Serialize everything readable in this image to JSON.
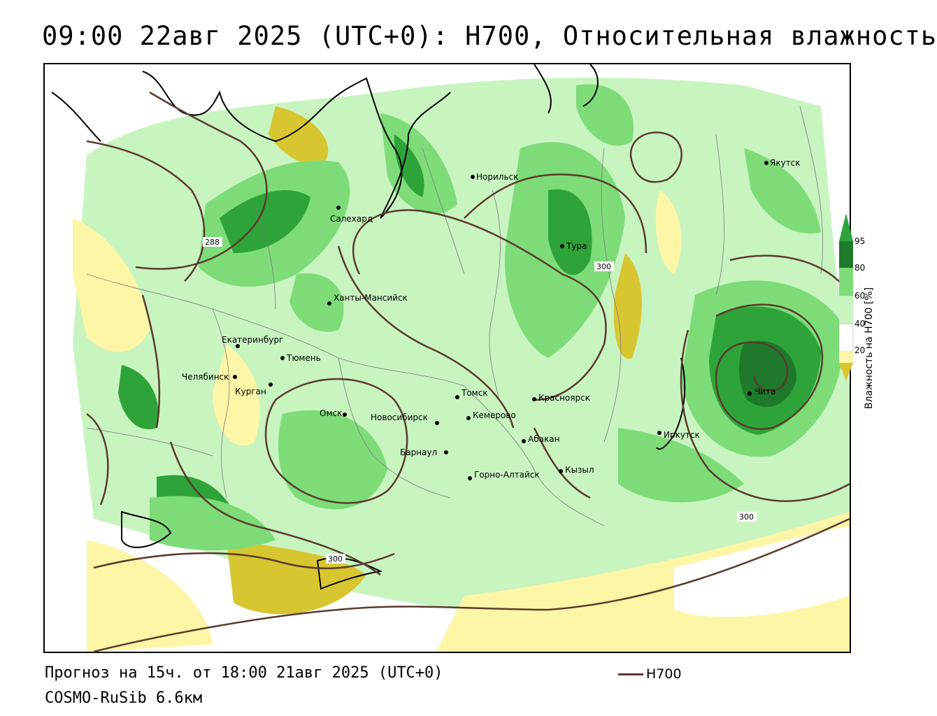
{
  "title": "09:00 22авг 2025 (UTC+0): H700, Относительная влажность",
  "forecast_line": "Прогноз на 15ч. от 18:00 21авг 2025 (UTC+0)",
  "model_line": "COSMO-RuSib 6.6км",
  "contour_legend": {
    "label": "H700",
    "color": "#5a3a2e"
  },
  "colorbar": {
    "title": "Влажность на H700 [%]",
    "ticks": [
      "95",
      "80",
      "60",
      "40",
      "20"
    ],
    "colors": {
      "very_dry": "#d8c630",
      "dry": "#fdf6a6",
      "neutral": "#ffffff",
      "moist": "#c8f4c0",
      "humid": "#7ddc78",
      "wet": "#2ea33a",
      "saturated": "#1e7a2a"
    }
  },
  "cities": [
    {
      "name": "Норильск"
    },
    {
      "name": "Якутск"
    },
    {
      "name": "Салехард"
    },
    {
      "name": "Тура"
    },
    {
      "name": "Ханты-Мансийск"
    },
    {
      "name": "Екатеринбург"
    },
    {
      "name": "Тюмень"
    },
    {
      "name": "Челябинск"
    },
    {
      "name": "Курган"
    },
    {
      "name": "Омск"
    },
    {
      "name": "Новосибирск"
    },
    {
      "name": "Томск"
    },
    {
      "name": "Кемерово"
    },
    {
      "name": "Красноярск"
    },
    {
      "name": "Абакан"
    },
    {
      "name": "Барнаул"
    },
    {
      "name": "Горно-Алтайск"
    },
    {
      "name": "Кызыл"
    },
    {
      "name": "Иркутск"
    },
    {
      "name": "Чита"
    }
  ],
  "contour_labels": [
    "288",
    "300",
    "300",
    "300"
  ]
}
